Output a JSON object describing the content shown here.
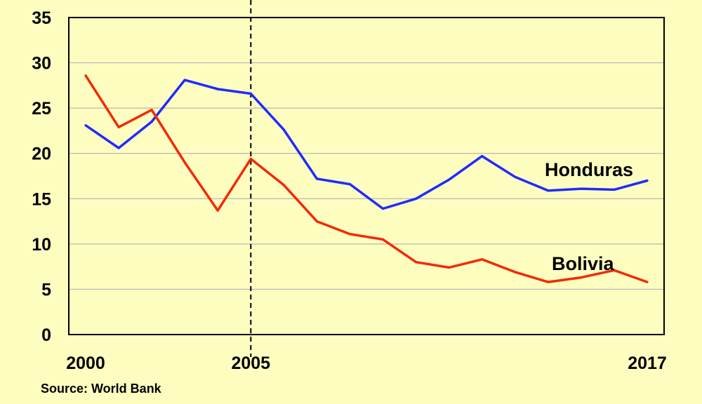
{
  "chart_data": {
    "type": "line",
    "title": "",
    "xlabel": "",
    "ylabel": "",
    "x": [
      2000,
      2001,
      2002,
      2003,
      2004,
      2005,
      2006,
      2007,
      2008,
      2009,
      2010,
      2011,
      2012,
      2013,
      2014,
      2015,
      2016,
      2017
    ],
    "xlim": [
      2000,
      2017
    ],
    "ylim": [
      0,
      35
    ],
    "y_ticks": [
      "0",
      "5",
      "10",
      "15",
      "20",
      "25",
      "30",
      "35"
    ],
    "x_ticks": [
      "2000",
      "2005",
      "2017"
    ],
    "grid": true,
    "vertical_marker": {
      "x": 2005,
      "style": "dashed"
    },
    "series": [
      {
        "name": "Honduras",
        "color": "#1f2bff",
        "values": [
          23.1,
          20.6,
          23.5,
          28.1,
          27.1,
          26.6,
          22.6,
          17.2,
          16.6,
          13.9,
          15.0,
          17.1,
          19.7,
          17.4,
          15.9,
          16.1,
          16.0,
          17.0
        ]
      },
      {
        "name": "Bolivia",
        "color": "#f22a0a",
        "values": [
          28.6,
          22.9,
          24.8,
          19.0,
          13.7,
          19.4,
          16.5,
          12.5,
          11.1,
          10.5,
          8.0,
          7.4,
          8.3,
          6.9,
          5.8,
          6.3,
          7.1,
          5.8
        ]
      }
    ]
  },
  "source": "Source: World Bank"
}
